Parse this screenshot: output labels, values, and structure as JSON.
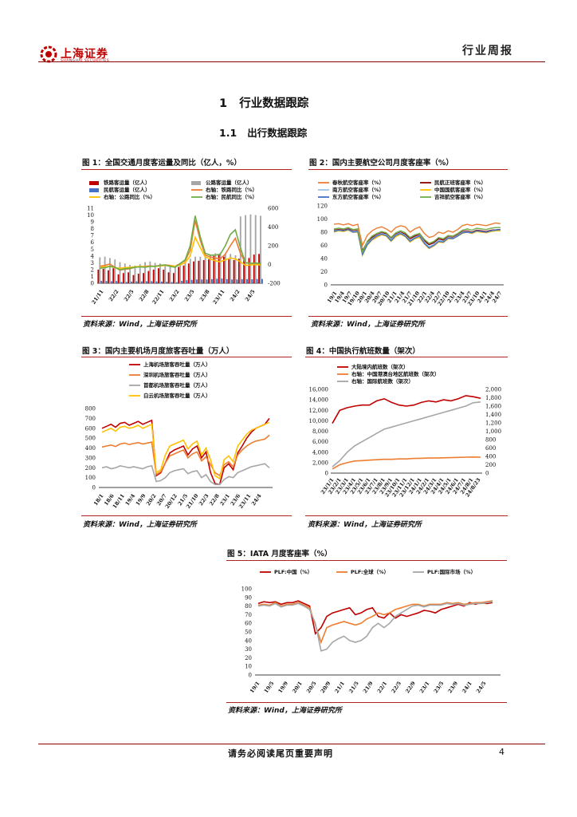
{
  "header": {
    "logo_cn": "上海证券",
    "logo_en": "SHANGHAI SECURITIES",
    "report_type": "行业周报"
  },
  "section": {
    "title": "1   行业数据跟踪",
    "subtitle": "1.1   出行数据跟踪"
  },
  "source_text": "资料来源：Wind，上海证券研究所",
  "footer": {
    "disclaimer": "请务必阅读尾页重要声明",
    "page": "4"
  },
  "colors": {
    "rail": "#c00000",
    "road": "#a6a6a6",
    "air": "#4472c4",
    "road_yoy": "#ffc000",
    "rail_yoy": "#ed7d31",
    "air_yoy": "#70ad47"
  },
  "chart_data": [
    {
      "id": "fig1",
      "type": "bar",
      "title": "图 1：全国交通月度客运量及同比（亿人，%）",
      "legend": [
        "铁路客运量（亿人）",
        "公路客运量（亿人）",
        "民航客运量（亿人）",
        "右轴：铁路同比（%）",
        "右轴：公路同比（%）",
        "右轴：民航同比（%）"
      ],
      "x_ticks": [
        "21/11",
        "22/2",
        "22/5",
        "22/8",
        "22/11",
        "23/2",
        "23/5",
        "23/8",
        "23/11",
        "24/2",
        "24/5"
      ],
      "y_ticks": [
        "0",
        "1",
        "2",
        "3",
        "4",
        "5",
        "6",
        "7",
        "8",
        "9",
        "10",
        "11"
      ],
      "y2_ticks": [
        "-200",
        "0",
        "200",
        "400",
        "600"
      ],
      "ylim": [
        0,
        11
      ],
      "y2lim": [
        -200,
        600
      ],
      "series": [
        {
          "name": "铁路客运量（亿人）",
          "values": [
            2.0,
            2.1,
            1.9,
            2.2,
            1.3,
            1.5,
            1.6,
            1.2,
            1.4,
            1.5,
            1.8,
            2.0,
            2.2,
            2.0,
            1.6,
            1.5,
            2.4,
            2.6,
            2.9,
            3.2,
            3.3,
            3.4,
            3.5,
            4.0,
            4.2,
            3.9,
            3.5,
            3.4,
            3.6,
            3.8,
            3.7,
            4.2,
            4.3
          ]
        },
        {
          "name": "公路客运量（亿人）",
          "values": [
            3.8,
            3.9,
            3.7,
            3.5,
            3.1,
            2.9,
            2.7,
            2.6,
            2.8,
            3.1,
            3.2,
            3.0,
            2.9,
            2.6,
            2.4,
            2.4,
            2.9,
            3.2,
            3.6,
            3.9,
            3.9,
            4.0,
            4.1,
            4.4,
            4.5,
            4.4,
            4.3,
            4.1,
            9.8,
            10.0,
            10.1,
            10.0,
            9.9
          ]
        },
        {
          "name": "民航客运量（亿人）",
          "values": [
            0.35,
            0.33,
            0.3,
            0.33,
            0.18,
            0.2,
            0.25,
            0.28,
            0.28,
            0.3,
            0.3,
            0.27,
            0.25,
            0.22,
            0.17,
            0.15,
            0.35,
            0.45,
            0.5,
            0.55,
            0.55,
            0.55,
            0.6,
            0.65,
            0.68,
            0.6,
            0.55,
            0.55,
            0.6,
            0.6,
            0.58,
            0.62,
            0.63
          ]
        },
        {
          "name": "右轴：铁路同比（%）",
          "values": [
            -20,
            -10,
            5,
            -30,
            -60,
            -50,
            -45,
            -30,
            -25,
            -20,
            -15,
            -20,
            -10,
            -5,
            -10,
            -20,
            10,
            40,
            150,
            470,
            260,
            100,
            80,
            70,
            60,
            110,
            200,
            280,
            120,
            20,
            10,
            15,
            5
          ]
        },
        {
          "name": "右轴：公路同比（%）",
          "values": [
            -30,
            -25,
            -20,
            -35,
            -40,
            -35,
            -30,
            -25,
            -20,
            -25,
            -20,
            -20,
            -15,
            -10,
            -15,
            -20,
            -5,
            20,
            90,
            290,
            180,
            80,
            60,
            40,
            30,
            50,
            70,
            60,
            30,
            -10,
            -5,
            0,
            -5
          ]
        },
        {
          "name": "右轴：民航同比（%）",
          "values": [
            -40,
            -35,
            -20,
            -30,
            -55,
            -45,
            -40,
            -30,
            -25,
            -30,
            -20,
            -20,
            -10,
            -5,
            -20,
            -30,
            10,
            50,
            200,
            520,
            300,
            120,
            100,
            100,
            110,
            200,
            320,
            370,
            180,
            20,
            10,
            15,
            10
          ]
        }
      ]
    },
    {
      "id": "fig2",
      "type": "line",
      "title": "图 2：国内主要航空公司月度客座率（%）",
      "legend": [
        "春秋航空客座率（%）",
        "民航正班客座率（%）",
        "南方航空客座率（%）",
        "中国国航客座率（%）",
        "东方航空客座率（%）",
        "吉祥航空客座率（%）"
      ],
      "x_ticks": [
        "19/1",
        "19/4",
        "19/7",
        "19/10",
        "20/1",
        "20/4",
        "20/7",
        "20/10",
        "21/1",
        "21/4",
        "21/7",
        "21/10",
        "22/1",
        "22/4",
        "22/7",
        "22/10",
        "23/1",
        "23/4",
        "23/7",
        "23/10",
        "24/1",
        "24/4",
        "24/7"
      ],
      "y_ticks": [
        "0",
        "20",
        "40",
        "60",
        "80",
        "100",
        "120"
      ],
      "ylim": [
        0,
        120
      ],
      "series": [
        {
          "name": "春秋航空客座率（%）",
          "values": [
            92,
            93,
            91,
            93,
            90,
            92,
            60,
            75,
            82,
            86,
            88,
            85,
            80,
            87,
            90,
            88,
            80,
            85,
            88,
            78,
            72,
            74,
            80,
            78,
            82,
            80,
            84,
            90,
            92,
            90,
            92,
            91,
            90,
            92,
            94,
            93
          ]
        },
        {
          "name": "民航正班客座率（%）",
          "values": [
            83,
            84,
            83,
            85,
            82,
            83,
            52,
            65,
            72,
            76,
            79,
            78,
            71,
            77,
            80,
            77,
            70,
            74,
            76,
            67,
            61,
            64,
            70,
            68,
            73,
            72,
            76,
            81,
            82,
            80,
            83,
            82,
            81,
            83,
            84,
            84
          ]
        },
        {
          "name": "南方航空客座率（%）",
          "values": [
            82,
            83,
            82,
            84,
            81,
            82,
            48,
            63,
            70,
            75,
            78,
            76,
            69,
            76,
            79,
            75,
            68,
            72,
            75,
            65,
            58,
            62,
            68,
            66,
            72,
            71,
            75,
            80,
            81,
            79,
            82,
            81,
            80,
            82,
            84,
            83
          ]
        },
        {
          "name": "中国国航客座率（%）",
          "values": [
            80,
            82,
            81,
            83,
            80,
            80,
            45,
            60,
            68,
            72,
            76,
            74,
            66,
            73,
            77,
            73,
            65,
            70,
            72,
            62,
            55,
            59,
            65,
            64,
            70,
            70,
            74,
            78,
            80,
            78,
            81,
            80,
            79,
            81,
            82,
            82
          ]
        },
        {
          "name": "东方航空客座率（%）",
          "values": [
            81,
            83,
            82,
            84,
            80,
            81,
            46,
            61,
            69,
            74,
            77,
            75,
            67,
            75,
            78,
            74,
            66,
            71,
            74,
            63,
            56,
            60,
            66,
            65,
            71,
            70,
            74,
            79,
            80,
            79,
            82,
            81,
            80,
            82,
            83,
            84
          ]
        },
        {
          "name": "吉祥航空客座率（%）",
          "values": [
            85,
            86,
            85,
            87,
            84,
            85,
            50,
            66,
            74,
            78,
            81,
            79,
            72,
            79,
            82,
            79,
            72,
            76,
            78,
            69,
            63,
            66,
            72,
            70,
            75,
            74,
            78,
            83,
            85,
            83,
            86,
            85,
            84,
            86,
            87,
            87
          ]
        }
      ]
    },
    {
      "id": "fig3",
      "type": "line",
      "title": "图 3：国内主要机场月度旅客吞吐量（万人）",
      "legend": [
        "上海机场旅客吞吐量（万人）",
        "深圳机场旅客吞吐量（万人）",
        "首都机场旅客吞吐量（万人）",
        "白云机场旅客吞吐量（万人）"
      ],
      "x_ticks": [
        "18/1",
        "18/6",
        "18/11",
        "19/4",
        "19/9",
        "20/2",
        "20/7",
        "20/12",
        "21/5",
        "21/10",
        "22/3",
        "22/8",
        "23/1",
        "23/6",
        "23/11",
        "24/4"
      ],
      "y_ticks": [
        "0",
        "100",
        "200",
        "300",
        "400",
        "500",
        "600",
        "700",
        "800"
      ],
      "ylim": [
        0,
        800
      ],
      "series": [
        {
          "name": "上海机场旅客吞吐量（万人）",
          "values": [
            600,
            620,
            640,
            610,
            650,
            660,
            630,
            650,
            670,
            640,
            660,
            680,
            120,
            150,
            250,
            350,
            380,
            400,
            420,
            330,
            390,
            420,
            300,
            360,
            150,
            40,
            30,
            200,
            240,
            180,
            350,
            420,
            500,
            560,
            600,
            620,
            640,
            700
          ]
        },
        {
          "name": "深圳机场旅客吞吐量（万人）",
          "values": [
            410,
            420,
            430,
            415,
            440,
            450,
            435,
            445,
            455,
            440,
            450,
            460,
            130,
            160,
            250,
            320,
            340,
            360,
            380,
            300,
            340,
            360,
            270,
            310,
            230,
            150,
            120,
            230,
            260,
            210,
            330,
            380,
            420,
            450,
            470,
            480,
            490,
            530
          ]
        },
        {
          "name": "首都机场旅客吞吐量（万人）",
          "values": [
            200,
            210,
            190,
            200,
            220,
            210,
            200,
            210,
            200,
            190,
            210,
            220,
            60,
            70,
            100,
            150,
            170,
            180,
            190,
            140,
            160,
            170,
            100,
            130,
            60,
            30,
            30,
            80,
            110,
            100,
            150,
            170,
            190,
            210,
            220,
            230,
            240,
            200
          ]
        },
        {
          "name": "白云机场旅客吞吐量（万人）",
          "values": [
            560,
            580,
            600,
            570,
            610,
            620,
            600,
            610,
            630,
            600,
            620,
            640,
            150,
            180,
            330,
            420,
            440,
            460,
            480,
            390,
            440,
            470,
            330,
            400,
            280,
            120,
            90,
            280,
            320,
            260,
            420,
            480,
            540,
            580,
            600,
            620,
            640,
            660
          ]
        }
      ]
    },
    {
      "id": "fig4",
      "type": "line",
      "title": "图 4：中国执行航班数量（架次）",
      "legend": [
        "大陆境内航班数（架次）",
        "右轴：中国港澳台地区航班数（架次）",
        "右轴：国际航班数（架次）"
      ],
      "x_ticks": [
        "23/1/1",
        "23/2/1",
        "23/3/1",
        "23/4/1",
        "23/5/1",
        "23/6/1",
        "23/7/1",
        "23/8/1",
        "23/9/1",
        "23/10/1",
        "23/11/1",
        "23/12/1",
        "24/1/1",
        "24/2/1",
        "24/3/1",
        "24/4/1",
        "24/5/1",
        "24/6/1",
        "24/7/1",
        "24/8/1",
        "24/8/23"
      ],
      "y_ticks": [
        "0",
        "2,000",
        "4,000",
        "6,000",
        "8,000",
        "10,000",
        "12,000",
        "14,000",
        "16,000"
      ],
      "y2_ticks": [
        "0",
        "200",
        "400",
        "600",
        "800",
        "1,000",
        "1,200",
        "1,400",
        "1,600",
        "1,800",
        "2,000"
      ],
      "ylim": [
        0,
        16000
      ],
      "y2lim": [
        0,
        2000
      ],
      "series": [
        {
          "name": "大陆境内航班数（架次）",
          "values": [
            9500,
            12000,
            12500,
            12800,
            13000,
            13000,
            13800,
            14200,
            13500,
            13000,
            12800,
            13000,
            13500,
            13800,
            13600,
            14000,
            13800,
            14200,
            14800,
            14600,
            14300
          ]
        },
        {
          "name": "右轴：中国港澳台地区航班数（架次）",
          "values": [
            100,
            200,
            250,
            290,
            300,
            310,
            320,
            330,
            330,
            340,
            340,
            350,
            355,
            360,
            360,
            365,
            370,
            375,
            380,
            385,
            380
          ]
        },
        {
          "name": "右轴：国际航班数（架次）",
          "values": [
            150,
            300,
            500,
            650,
            750,
            850,
            950,
            1050,
            1100,
            1150,
            1200,
            1250,
            1300,
            1350,
            1400,
            1450,
            1500,
            1550,
            1600,
            1680,
            1700
          ]
        }
      ]
    },
    {
      "id": "fig5",
      "type": "line",
      "title": "图 5：IATA 月度客座率（%）",
      "legend": [
        "PLF:中国（%）",
        "PLF:全球（%）",
        "PLF:国际市场（%）"
      ],
      "x_ticks": [
        "19/1",
        "19/5",
        "19/9",
        "20/1",
        "20/5",
        "20/9",
        "21/1",
        "21/5",
        "21/9",
        "22/1",
        "22/5",
        "22/9",
        "23/1",
        "23/5",
        "23/9",
        "24/1",
        "24/5"
      ],
      "y_ticks": [
        "0",
        "10",
        "20",
        "30",
        "40",
        "50",
        "60",
        "70",
        "80",
        "90",
        "100"
      ],
      "ylim": [
        0,
        100
      ],
      "series": [
        {
          "name": "PLF:中国（%）",
          "values": [
            83,
            85,
            84,
            85,
            82,
            84,
            84,
            86,
            83,
            80,
            48,
            55,
            68,
            72,
            74,
            76,
            78,
            70,
            72,
            76,
            78,
            68,
            66,
            72,
            66,
            70,
            68,
            70,
            72,
            75,
            74,
            72,
            76,
            78,
            80,
            82,
            80,
            84,
            82,
            84,
            83,
            84
          ]
        },
        {
          "name": "PLF:全球（%）",
          "values": [
            81,
            82,
            81,
            84,
            80,
            82,
            82,
            84,
            81,
            78,
            58,
            38,
            55,
            58,
            60,
            62,
            60,
            58,
            60,
            65,
            68,
            72,
            70,
            72,
            76,
            78,
            80,
            82,
            82,
            80,
            82,
            82,
            82,
            84,
            83,
            84,
            82,
            83,
            84,
            84,
            85,
            86
          ]
        },
        {
          "name": "PLF:国际市场（%）",
          "values": [
            80,
            81,
            80,
            83,
            79,
            81,
            81,
            83,
            80,
            76,
            60,
            28,
            30,
            38,
            42,
            45,
            40,
            38,
            40,
            45,
            55,
            60,
            55,
            60,
            68,
            72,
            76,
            80,
            81,
            79,
            81,
            81,
            81,
            83,
            82,
            83,
            81,
            82,
            83,
            83,
            84,
            85
          ]
        }
      ]
    }
  ]
}
